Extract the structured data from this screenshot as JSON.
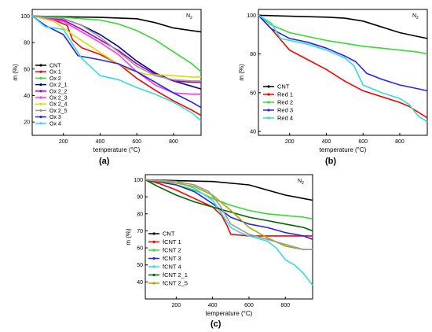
{
  "chart_data": [
    {
      "type": "line",
      "panel_label": "(a)",
      "annotation": "N",
      "annotation_sub": "2",
      "xlabel": "temperature (°C)",
      "ylabel": "m (%)",
      "xlim": [
        30,
        950
      ],
      "ylim": [
        10,
        105
      ],
      "xticks": [
        200,
        400,
        600,
        800
      ],
      "yticks": [
        20,
        40,
        60,
        80,
        100
      ],
      "legend": "left",
      "series": [
        {
          "name": "CNT",
          "color": "#000000",
          "x": [
            30,
            200,
            400,
            600,
            700,
            800,
            900,
            950
          ],
          "y": [
            100,
            99.5,
            99,
            98,
            95,
            91,
            89,
            88
          ]
        },
        {
          "name": "Ox 1",
          "color": "#ff0000",
          "x": [
            30,
            150,
            220,
            250,
            300,
            400,
            500,
            600,
            700,
            800,
            900,
            950
          ],
          "y": [
            100,
            97,
            93,
            82,
            76,
            71,
            64,
            53,
            44,
            36,
            29,
            25
          ]
        },
        {
          "name": "Ox 2",
          "color": "#33dd33",
          "x": [
            30,
            200,
            400,
            500,
            600,
            700,
            800,
            900,
            950
          ],
          "y": [
            100,
            99,
            97,
            94,
            89,
            82,
            73,
            64,
            58
          ]
        },
        {
          "name": "Ox 2_1",
          "color": "#0000aa",
          "x": [
            30,
            200,
            300,
            400,
            500,
            600,
            700,
            800,
            900,
            950
          ],
          "y": [
            100,
            98,
            93,
            86,
            77,
            66,
            57,
            51,
            47,
            45
          ]
        },
        {
          "name": "Ox 2_2",
          "color": "#aa00aa",
          "x": [
            30,
            200,
            300,
            400,
            500,
            600,
            700,
            800,
            900,
            950
          ],
          "y": [
            100,
            97,
            90,
            82,
            74,
            64,
            56,
            51,
            50,
            50
          ]
        },
        {
          "name": "Ox 2_3",
          "color": "#ff33ff",
          "x": [
            30,
            200,
            300,
            400,
            500,
            600,
            700,
            800,
            900,
            950
          ],
          "y": [
            100,
            96,
            88,
            80,
            71,
            58,
            48,
            42,
            41,
            41
          ]
        },
        {
          "name": "Ox 2_4",
          "color": "#dddd00",
          "x": [
            30,
            150,
            250,
            350,
            450,
            550,
            650,
            800,
            900,
            950
          ],
          "y": [
            100,
            96,
            86,
            77,
            68,
            60,
            56,
            55,
            54,
            54
          ]
        },
        {
          "name": "Ox 2_5",
          "color": "#999999",
          "x": [
            30,
            200,
            300,
            400,
            500,
            600,
            700,
            800,
            900,
            950
          ],
          "y": [
            100,
            98,
            93,
            84,
            73,
            62,
            55,
            52,
            51,
            51
          ]
        },
        {
          "name": "Ox 3",
          "color": "#2222ff",
          "x": [
            30,
            100,
            200,
            240,
            280,
            400,
            500,
            600,
            700,
            800,
            900,
            950
          ],
          "y": [
            100,
            93,
            86,
            78,
            70,
            67,
            64,
            58,
            50,
            42,
            35,
            31
          ]
        },
        {
          "name": "Ox 4",
          "color": "#33dddd",
          "x": [
            30,
            100,
            200,
            300,
            400,
            500,
            600,
            700,
            800,
            900,
            950
          ],
          "y": [
            100,
            92,
            90,
            68,
            55,
            52,
            46,
            41,
            35,
            27,
            21
          ]
        }
      ]
    },
    {
      "type": "line",
      "panel_label": "(b)",
      "annotation": "N",
      "annotation_sub": "2",
      "xlabel": "temperature (°C)",
      "ylabel": "m (%)",
      "xlim": [
        30,
        950
      ],
      "ylim": [
        38,
        103
      ],
      "xticks": [
        200,
        400,
        600,
        800
      ],
      "yticks": [
        40,
        60,
        80,
        100
      ],
      "legend": "left",
      "series": [
        {
          "name": "CNT",
          "color": "#000000",
          "x": [
            30,
            200,
            400,
            500,
            600,
            700,
            800,
            900,
            950
          ],
          "y": [
            100,
            99.5,
            99,
            98.5,
            97,
            94,
            91,
            89,
            88
          ]
        },
        {
          "name": "Red 1",
          "color": "#ff0000",
          "x": [
            30,
            100,
            200,
            300,
            400,
            500,
            600,
            700,
            800,
            850,
            900,
            950
          ],
          "y": [
            100,
            93,
            82,
            77,
            72,
            66,
            61,
            58,
            55,
            53,
            50,
            47
          ]
        },
        {
          "name": "Red 2",
          "color": "#33dd33",
          "x": [
            30,
            100,
            200,
            300,
            400,
            500,
            600,
            700,
            800,
            900,
            950
          ],
          "y": [
            100,
            95,
            91,
            89,
            87,
            85.5,
            84,
            83,
            82,
            81,
            80
          ]
        },
        {
          "name": "Red 3",
          "color": "#2222ff",
          "x": [
            30,
            100,
            200,
            300,
            400,
            500,
            560,
            620,
            700,
            800,
            900,
            950
          ],
          "y": [
            100,
            93,
            88,
            86,
            83,
            79,
            76,
            70,
            67,
            64,
            62,
            61
          ]
        },
        {
          "name": "Red 4",
          "color": "#33dddd",
          "x": [
            30,
            100,
            150,
            200,
            300,
            400,
            500,
            550,
            600,
            700,
            800,
            850,
            900,
            950
          ],
          "y": [
            100,
            96,
            88,
            87,
            85,
            82,
            78,
            74,
            64,
            60,
            57,
            54,
            48,
            45
          ]
        }
      ]
    },
    {
      "type": "line",
      "panel_label": "(c)",
      "annotation": "N",
      "annotation_sub": "2",
      "xlabel": "temperature (°C)",
      "ylabel": "m (%)",
      "xlim": [
        30,
        950
      ],
      "ylim": [
        30,
        103
      ],
      "xticks": [
        200,
        400,
        600,
        800
      ],
      "yticks": [
        40,
        50,
        60,
        70,
        80,
        90,
        100
      ],
      "legend": "left",
      "series": [
        {
          "name": "CNT",
          "color": "#000000",
          "x": [
            30,
            200,
            400,
            600,
            700,
            800,
            900,
            950
          ],
          "y": [
            100,
            99.5,
            99,
            97,
            94,
            91,
            89,
            88
          ]
        },
        {
          "name": "fCNT 1",
          "color": "#ff0000",
          "x": [
            30,
            100,
            200,
            300,
            400,
            450,
            480,
            500,
            600,
            700,
            800,
            900,
            950
          ],
          "y": [
            100,
            98,
            94,
            89,
            84,
            79,
            73,
            68,
            67,
            67,
            67,
            67,
            67
          ]
        },
        {
          "name": "fCNT 2",
          "color": "#33dd33",
          "x": [
            30,
            200,
            300,
            400,
            500,
            600,
            700,
            800,
            900,
            950
          ],
          "y": [
            100,
            97,
            94,
            89,
            85,
            82,
            80,
            79,
            78,
            77
          ]
        },
        {
          "name": "fCNT 3",
          "color": "#2222ff",
          "x": [
            30,
            200,
            300,
            400,
            500,
            600,
            700,
            800,
            900,
            950
          ],
          "y": [
            100,
            97,
            93,
            86,
            78,
            74,
            72,
            69,
            67,
            65
          ]
        },
        {
          "name": "fCNT 4",
          "color": "#33dddd",
          "x": [
            30,
            200,
            300,
            400,
            500,
            550,
            600,
            700,
            750,
            800,
            850,
            900,
            950
          ],
          "y": [
            100,
            99,
            95,
            88,
            72,
            69,
            67,
            64,
            60,
            53,
            50,
            45,
            38
          ]
        },
        {
          "name": "fCNT 2_1",
          "color": "#006600",
          "x": [
            30,
            100,
            200,
            300,
            400,
            500,
            600,
            700,
            800,
            900,
            950
          ],
          "y": [
            100,
            96,
            91,
            87,
            84,
            81,
            78,
            76,
            74,
            72,
            70
          ]
        },
        {
          "name": "fCNT 2_5",
          "color": "#aaaa00",
          "x": [
            30,
            200,
            300,
            400,
            500,
            600,
            700,
            800,
            900,
            950
          ],
          "y": [
            100,
            98,
            96,
            91,
            82,
            72,
            66,
            61,
            59,
            59
          ]
        },
        {
          "name": "",
          "color": "#999999",
          "x": [
            30,
            200,
            300,
            380,
            440,
            500,
            600,
            700,
            800,
            900,
            950
          ],
          "y": [
            100,
            99,
            97,
            93,
            85,
            74,
            68,
            65,
            62,
            59,
            59
          ]
        }
      ]
    }
  ]
}
